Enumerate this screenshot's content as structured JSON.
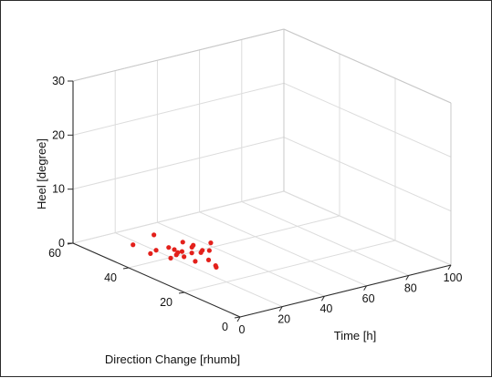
{
  "chart_data": {
    "type": "scatter3d",
    "title": "",
    "xlabel": "Time [h]",
    "ylabel": "Direction Change [rhumb]",
    "zlabel": "Heel [degree]",
    "xlim": [
      0,
      100
    ],
    "ylim": [
      0,
      60
    ],
    "zlim": [
      0,
      30
    ],
    "x_ticks": [
      "0",
      "20",
      "40",
      "60",
      "80",
      "100"
    ],
    "y_ticks": [
      "0",
      "20",
      "40",
      "60"
    ],
    "z_ticks": [
      "0",
      "10",
      "20",
      "30"
    ],
    "grid": true,
    "marker_color": "#e3201b",
    "points": [
      {
        "x": 6,
        "y": 43,
        "z": 3
      },
      {
        "x": 8,
        "y": 37,
        "z": 6
      },
      {
        "x": 9,
        "y": 39,
        "z": 2
      },
      {
        "x": 13,
        "y": 40,
        "z": 2
      },
      {
        "x": 12,
        "y": 34,
        "z": 2
      },
      {
        "x": 15,
        "y": 37,
        "z": 3
      },
      {
        "x": 16,
        "y": 35,
        "z": 2
      },
      {
        "x": 18,
        "y": 36,
        "z": 2
      },
      {
        "x": 17,
        "y": 33,
        "z": 2
      },
      {
        "x": 20,
        "y": 36,
        "z": 2
      },
      {
        "x": 21,
        "y": 32,
        "z": 1
      },
      {
        "x": 19,
        "y": 38,
        "z": 2
      },
      {
        "x": 22,
        "y": 34,
        "z": 2
      },
      {
        "x": 24,
        "y": 35,
        "z": 3
      },
      {
        "x": 23,
        "y": 38,
        "z": 3
      },
      {
        "x": 26,
        "y": 37,
        "z": 2
      },
      {
        "x": 25,
        "y": 33,
        "z": 2
      },
      {
        "x": 27,
        "y": 34,
        "z": 2
      },
      {
        "x": 26,
        "y": 31,
        "z": 1
      },
      {
        "x": 29,
        "y": 33,
        "z": 2
      },
      {
        "x": 28,
        "y": 30,
        "z": 0
      },
      {
        "x": 31,
        "y": 34,
        "z": 3
      },
      {
        "x": 27,
        "y": 29,
        "z": 0
      }
    ]
  }
}
